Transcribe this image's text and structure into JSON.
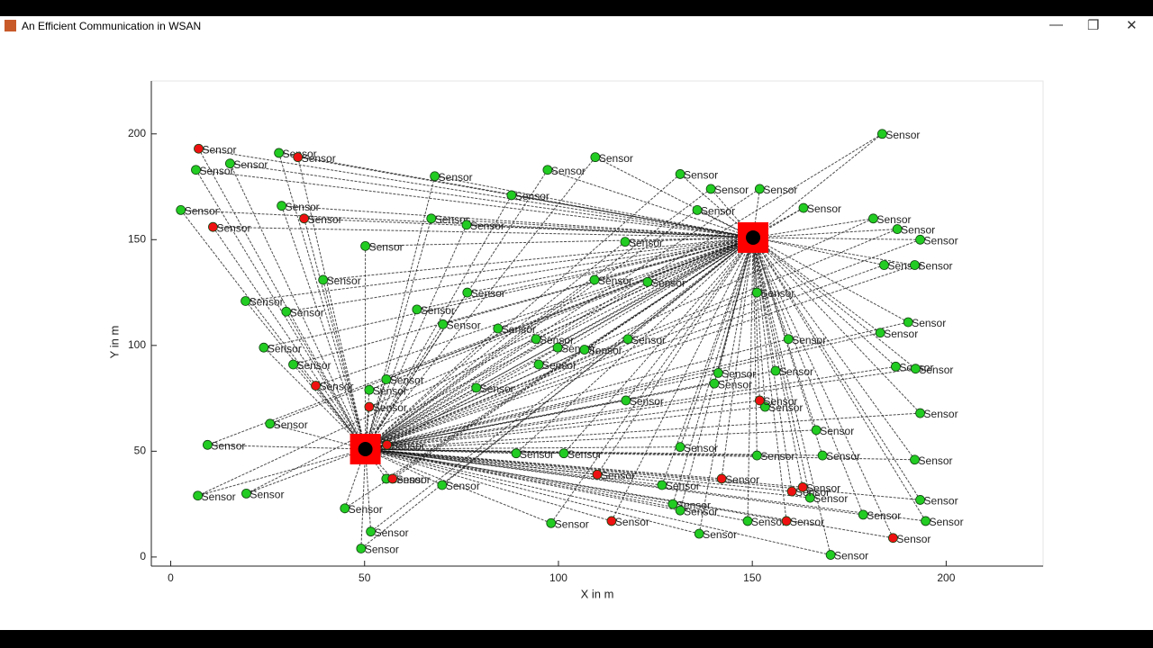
{
  "window_title": "An Efficient Communication in WSAN",
  "chart_data": {
    "type": "scatter",
    "x_label": "X in m",
    "y_label": "Y in m",
    "xlim": [
      -5,
      225
    ],
    "ylim": [
      -4.3,
      225
    ],
    "xticks": [
      0,
      50,
      100,
      150,
      200
    ],
    "yticks": [
      0,
      50,
      100,
      150,
      200
    ],
    "series": [
      {
        "name": "Sensor",
        "label": "Sensor",
        "color": "#22cc22",
        "x": [
          6.5,
          15.3,
          27.9,
          2.6,
          28.6,
          68.1,
          97.2,
          109.5,
          131.4,
          139.3,
          151.9,
          135.8,
          163.2,
          183.5,
          87.9,
          67.2,
          76.3,
          50.2,
          117.2,
          181.2,
          187.4,
          193.3,
          184,
          191.9,
          39.3,
          19.3,
          29.8,
          76.5,
          109.3,
          123,
          151.2,
          63.5,
          70.2,
          84.4,
          94.2,
          99.8,
          106.7,
          117.9,
          159.3,
          190.2,
          183,
          24,
          31.6,
          94.9,
          141.2,
          156,
          187,
          192.1,
          55.6,
          51.2,
          78.8,
          140.2,
          117.4,
          153.3,
          193.3,
          25.6,
          166.5,
          9.5,
          131.4,
          89.1,
          101.4,
          151.2,
          168.1,
          191.9,
          55.6,
          70,
          126.7,
          164.9,
          193.3,
          7,
          19.5,
          129.5,
          131.4,
          44.9,
          178.6,
          194.7,
          148.8,
          51.6,
          98.1,
          136.3,
          49.1,
          170.2
        ],
        "y": [
          183,
          186,
          191,
          164,
          166,
          180,
          183,
          189,
          181,
          174,
          174,
          164,
          165,
          200,
          171,
          160,
          157,
          147,
          149,
          160,
          155,
          150,
          138,
          138,
          131,
          121,
          116,
          125,
          131,
          130,
          125,
          117,
          110,
          108,
          103,
          99,
          98,
          103,
          103,
          111,
          106,
          99,
          91,
          91,
          87,
          88,
          90,
          89,
          84,
          79,
          80,
          82,
          74,
          71,
          68,
          63,
          60,
          53,
          52,
          49,
          49,
          48,
          48,
          46,
          37,
          34,
          34,
          28,
          27,
          29,
          30,
          25,
          22,
          23,
          20,
          17,
          17,
          12,
          16,
          11,
          4,
          1
        ]
      },
      {
        "name": "Sensor",
        "label": "Sensor",
        "color": "#ee1111",
        "x": [
          7.2,
          32.8,
          34.4,
          10.9,
          37.4,
          51.2,
          55.8,
          57.2,
          110,
          142.1,
          151.9,
          160.2,
          163,
          113.7,
          158.8,
          186.3
        ],
        "y": [
          193,
          189,
          160,
          156,
          81,
          71,
          53,
          37,
          39,
          37,
          74,
          31,
          33,
          17,
          17,
          9
        ]
      }
    ],
    "warehouses": {
      "color": "#ff0000",
      "x": [
        50.2,
        150.2
      ],
      "y": [
        51,
        151
      ]
    }
  }
}
